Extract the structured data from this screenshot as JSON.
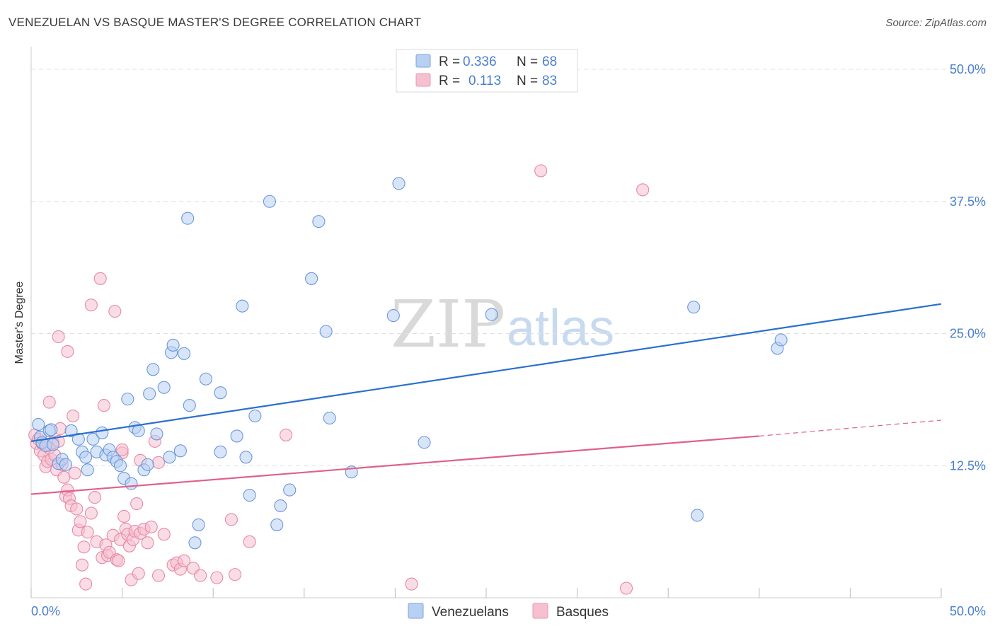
{
  "title": "VENEZUELAN VS BASQUE MASTER'S DEGREE CORRELATION CHART",
  "source": "Source: ZipAtlas.com",
  "watermark": {
    "zip": "ZIP",
    "atlas": "atlas"
  },
  "colors": {
    "blue": "#4a7fd0",
    "blue_fill": "#b8d0f2",
    "blue_line": "#2a6fd0",
    "pink": "#e46a94",
    "pink_fill": "#f6c0d0",
    "pink_line": "#e0608a",
    "grid": "#dddddd",
    "axis_text": "#4a7fd0"
  },
  "legend": {
    "blue": {
      "r_label": "R =",
      "r_value": "0.336",
      "n_label": "N =",
      "n_value": "68"
    },
    "pink": {
      "r_label": "R =",
      "r_value": "0.113",
      "n_label": "N =",
      "n_value": "83"
    }
  },
  "chart_data": {
    "type": "scatter",
    "title": "VENEZUELAN VS BASQUE MASTER'S DEGREE CORRELATION CHART",
    "xlabel": "",
    "ylabel": "Master's Degree",
    "xlim": [
      0,
      50
    ],
    "ylim": [
      0,
      50
    ],
    "x_tick_labels": [
      "0.0%",
      "50.0%"
    ],
    "y_ticks": [
      12.5,
      25.0,
      37.5,
      50.0
    ],
    "y_tick_labels": [
      "12.5%",
      "25.0%",
      "37.5%",
      "50.0%"
    ],
    "grid": true,
    "legend_position": "bottom-center",
    "series": [
      {
        "name": "Venezuelans",
        "color": "#4a7fd0",
        "fill": "#b8d0f2",
        "r": 0.336,
        "n": 68,
        "trend": {
          "x": [
            0,
            50
          ],
          "y": [
            14.8,
            27.8
          ]
        },
        "points": [
          [
            0.4,
            16.4
          ],
          [
            0.5,
            15.2
          ],
          [
            0.6,
            14.7
          ],
          [
            0.8,
            14.4
          ],
          [
            1.0,
            15.8
          ],
          [
            1.1,
            15.9
          ],
          [
            1.2,
            14.5
          ],
          [
            1.5,
            12.7
          ],
          [
            1.7,
            13.1
          ],
          [
            1.9,
            12.6
          ],
          [
            2.2,
            15.8
          ],
          [
            2.6,
            15.0
          ],
          [
            2.8,
            13.8
          ],
          [
            3.0,
            13.3
          ],
          [
            3.1,
            12.1
          ],
          [
            3.4,
            15.0
          ],
          [
            3.6,
            13.8
          ],
          [
            3.9,
            15.6
          ],
          [
            4.1,
            13.5
          ],
          [
            4.3,
            14.0
          ],
          [
            4.5,
            13.3
          ],
          [
            4.7,
            12.9
          ],
          [
            4.9,
            12.5
          ],
          [
            5.1,
            11.3
          ],
          [
            5.3,
            18.8
          ],
          [
            5.5,
            10.8
          ],
          [
            5.7,
            16.1
          ],
          [
            5.9,
            15.8
          ],
          [
            6.2,
            12.1
          ],
          [
            6.4,
            12.6
          ],
          [
            6.5,
            19.3
          ],
          [
            6.7,
            21.6
          ],
          [
            6.9,
            15.5
          ],
          [
            7.3,
            19.9
          ],
          [
            7.6,
            13.3
          ],
          [
            7.7,
            23.2
          ],
          [
            7.8,
            23.9
          ],
          [
            8.2,
            13.9
          ],
          [
            8.4,
            23.1
          ],
          [
            8.6,
            35.9
          ],
          [
            8.7,
            18.2
          ],
          [
            9.0,
            5.2
          ],
          [
            9.2,
            6.9
          ],
          [
            9.6,
            20.7
          ],
          [
            10.4,
            19.4
          ],
          [
            10.4,
            13.8
          ],
          [
            11.3,
            15.3
          ],
          [
            11.6,
            27.6
          ],
          [
            11.8,
            13.3
          ],
          [
            12.0,
            9.7
          ],
          [
            12.3,
            17.2
          ],
          [
            13.1,
            37.5
          ],
          [
            13.5,
            6.9
          ],
          [
            13.7,
            8.7
          ],
          [
            14.2,
            10.2
          ],
          [
            15.4,
            30.2
          ],
          [
            15.8,
            35.6
          ],
          [
            16.2,
            25.2
          ],
          [
            16.4,
            17.0
          ],
          [
            17.6,
            11.9
          ],
          [
            19.9,
            26.7
          ],
          [
            20.2,
            39.2
          ],
          [
            21.6,
            14.7
          ],
          [
            25.3,
            26.8
          ],
          [
            36.4,
            27.5
          ],
          [
            36.6,
            7.8
          ],
          [
            41.0,
            23.6
          ],
          [
            41.2,
            24.4
          ]
        ]
      },
      {
        "name": "Basques",
        "color": "#e46a94",
        "fill": "#f6c0d0",
        "r": 0.113,
        "n": 83,
        "trend": {
          "x": [
            0,
            40
          ],
          "y": [
            9.8,
            15.3
          ]
        },
        "trend_dashed": {
          "x": [
            40,
            50
          ],
          "y": [
            15.3,
            16.8
          ]
        },
        "points": [
          [
            0.2,
            15.4
          ],
          [
            0.3,
            14.6
          ],
          [
            0.4,
            15.0
          ],
          [
            0.5,
            13.9
          ],
          [
            0.6,
            14.6
          ],
          [
            0.7,
            13.5
          ],
          [
            0.8,
            12.4
          ],
          [
            0.9,
            12.9
          ],
          [
            1.0,
            14.2
          ],
          [
            1.1,
            13.1
          ],
          [
            1.2,
            14.7
          ],
          [
            1.3,
            13.5
          ],
          [
            1.4,
            12.1
          ],
          [
            1.5,
            14.8
          ],
          [
            1.6,
            16.0
          ],
          [
            1.7,
            12.6
          ],
          [
            1.8,
            11.4
          ],
          [
            1.9,
            9.6
          ],
          [
            2.0,
            10.2
          ],
          [
            2.1,
            9.4
          ],
          [
            2.2,
            8.7
          ],
          [
            2.3,
            17.2
          ],
          [
            2.4,
            11.8
          ],
          [
            2.5,
            8.4
          ],
          [
            2.6,
            6.4
          ],
          [
            2.7,
            7.2
          ],
          [
            2.8,
            3.1
          ],
          [
            2.9,
            4.8
          ],
          [
            3.0,
            1.3
          ],
          [
            3.1,
            6.2
          ],
          [
            3.3,
            8.0
          ],
          [
            3.5,
            9.5
          ],
          [
            3.6,
            5.3
          ],
          [
            3.8,
            30.2
          ],
          [
            3.9,
            3.8
          ],
          [
            4.1,
            5.0
          ],
          [
            4.2,
            4.0
          ],
          [
            4.3,
            4.3
          ],
          [
            4.5,
            5.9
          ],
          [
            4.6,
            27.1
          ],
          [
            4.7,
            3.6
          ],
          [
            4.8,
            3.5
          ],
          [
            4.9,
            5.5
          ],
          [
            5.0,
            13.7
          ],
          [
            5.1,
            7.7
          ],
          [
            5.2,
            6.5
          ],
          [
            5.3,
            6.0
          ],
          [
            5.4,
            4.9
          ],
          [
            5.5,
            1.7
          ],
          [
            5.6,
            5.5
          ],
          [
            5.7,
            6.3
          ],
          [
            5.8,
            8.9
          ],
          [
            5.9,
            2.3
          ],
          [
            6.0,
            6.1
          ],
          [
            6.2,
            6.5
          ],
          [
            6.4,
            5.2
          ],
          [
            6.6,
            6.7
          ],
          [
            6.8,
            14.8
          ],
          [
            7.0,
            2.1
          ],
          [
            7.3,
            6.0
          ],
          [
            7.8,
            3.1
          ],
          [
            8.0,
            3.3
          ],
          [
            8.2,
            2.7
          ],
          [
            8.4,
            3.5
          ],
          [
            8.9,
            2.8
          ],
          [
            9.3,
            2.1
          ],
          [
            10.2,
            1.9
          ],
          [
            11.0,
            7.4
          ],
          [
            11.2,
            2.2
          ],
          [
            12.0,
            5.3
          ],
          [
            14.0,
            15.4
          ],
          [
            20.9,
            1.3
          ],
          [
            28.0,
            40.4
          ],
          [
            33.6,
            38.6
          ],
          [
            32.7,
            0.9
          ],
          [
            1.0,
            18.5
          ],
          [
            1.5,
            24.7
          ],
          [
            2.0,
            23.3
          ],
          [
            3.3,
            27.7
          ],
          [
            4.0,
            18.2
          ],
          [
            5.0,
            14.0
          ],
          [
            6.0,
            13.0
          ],
          [
            7.0,
            12.8
          ]
        ]
      }
    ]
  }
}
